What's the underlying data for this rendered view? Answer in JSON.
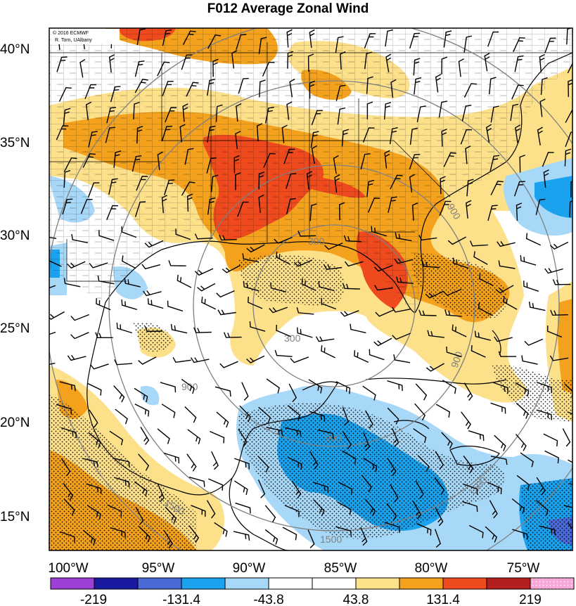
{
  "title": "F012 Average Zonal Wind",
  "credit": [
    "© 2016 ECMWF",
    "R. Torn, UAlbany"
  ],
  "lat_labels": [
    "40°N",
    "35°N",
    "30°N",
    "25°N",
    "20°N",
    "15°N"
  ],
  "lon_labels": [
    "100°W",
    "95°W",
    "90°W",
    "85°W",
    "80°W",
    "75°W"
  ],
  "colorbar": {
    "colors": [
      "#9b3fd6",
      "#1a1aa0",
      "#4a6ad8",
      "#1aa2ee",
      "#a8d8f8",
      "#ffffff",
      "#ffffff",
      "#fde08a",
      "#f4a21e",
      "#ee4a1e",
      "#b41e1e",
      "#f8a8d8"
    ],
    "labels": [
      "-219",
      "-131.4",
      "-43.8",
      "43.8",
      "131.4",
      "219"
    ]
  },
  "range_rings": [
    "300",
    "300",
    "900",
    "900",
    "900",
    "900",
    "1500",
    "1500",
    "1500"
  ],
  "colors": {
    "strong_positive": "#ee4a1e",
    "positive": "#f4a21e",
    "weak_positive": "#fde08a",
    "weak_negative": "#a8d8f8",
    "negative": "#1aa2ee",
    "strong_negative": "#4a6ad8",
    "ring": "#808080"
  }
}
